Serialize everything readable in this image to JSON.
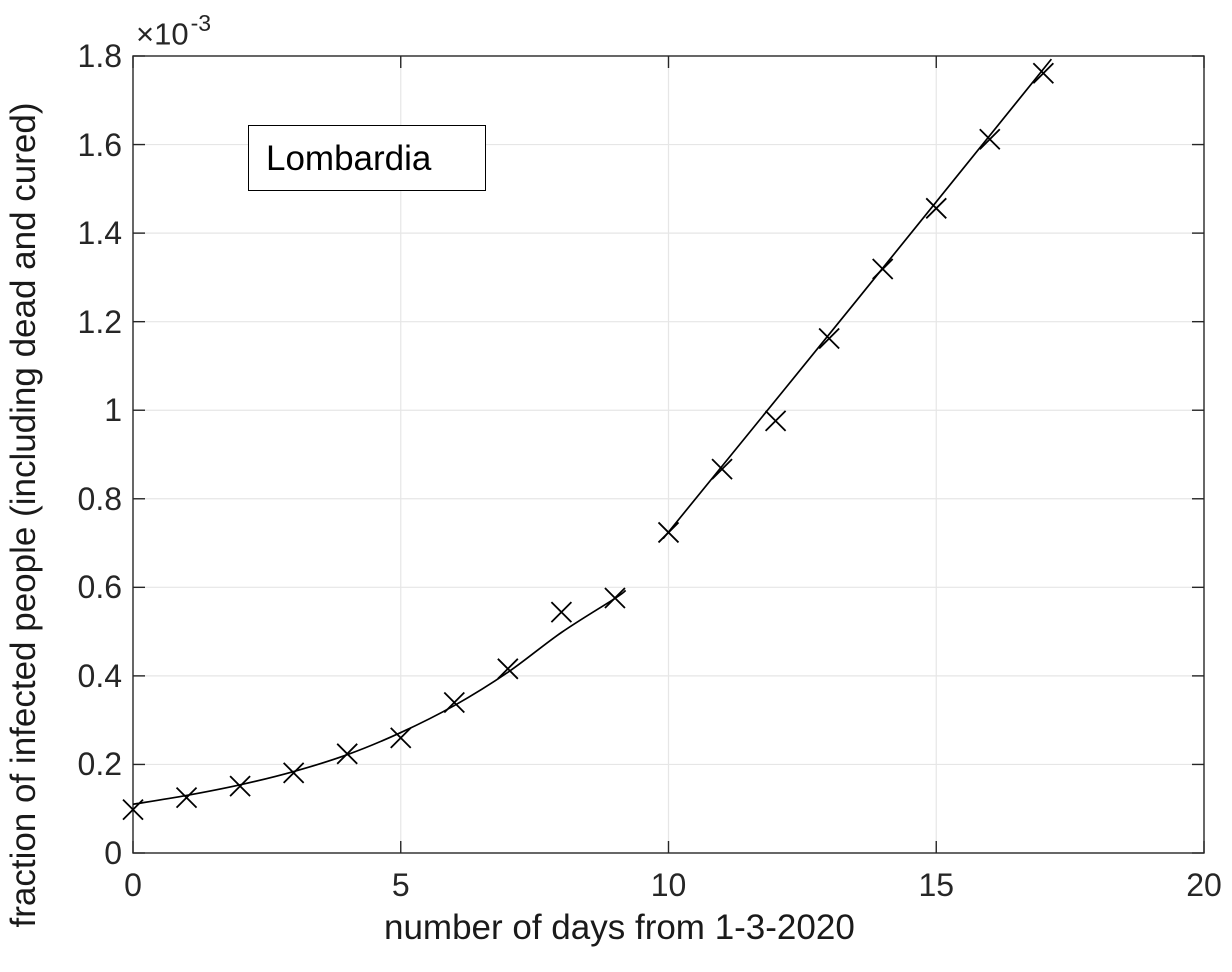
{
  "figure": {
    "y_exponent_base": "×10",
    "y_exponent_power": "-3"
  },
  "chart_data": {
    "type": "scatter",
    "annotation": "Lombardia",
    "xlabel": "number of days from 1-3-2020",
    "ylabel": "fraction of infected people (including dead and cured)",
    "y_scale_label": "×10^-3",
    "xlim": [
      0,
      20
    ],
    "ylim_in_1e-3": [
      0,
      1.8
    ],
    "x_ticks": [
      0,
      5,
      10,
      15,
      20
    ],
    "x_tick_labels": [
      "0",
      "5",
      "10",
      "15",
      "20"
    ],
    "y_ticks": [
      0,
      0.2,
      0.4,
      0.6,
      0.8,
      1.0,
      1.2,
      1.4,
      1.6,
      1.8
    ],
    "y_tick_labels": [
      "0",
      "0.2",
      "0.4",
      "0.6",
      "0.8",
      "1",
      "1.2",
      "1.4",
      "1.6",
      "1.8"
    ],
    "grid": true,
    "legend_position": "none",
    "marker": "x",
    "series": [
      {
        "name": "infected-fraction-data",
        "type": "scatter",
        "x": [
          0,
          1,
          2,
          3,
          4,
          5,
          6,
          7,
          8,
          9,
          10,
          11,
          12,
          13,
          14,
          15,
          16,
          17
        ],
        "y_in_1e-3": [
          0.098,
          0.125,
          0.151,
          0.181,
          0.224,
          0.26,
          0.34,
          0.416,
          0.544,
          0.576,
          0.724,
          0.867,
          0.976,
          1.162,
          1.319,
          1.456,
          1.612,
          1.761
        ]
      },
      {
        "name": "fit-curve-segment-1",
        "type": "line",
        "points_in_1e-3": [
          [
            0,
            0.11
          ],
          [
            1,
            0.13
          ],
          [
            2,
            0.154
          ],
          [
            3,
            0.184
          ],
          [
            4,
            0.222
          ],
          [
            5,
            0.272
          ],
          [
            6,
            0.333
          ],
          [
            7,
            0.408
          ],
          [
            8,
            0.498
          ],
          [
            9,
            0.575
          ],
          [
            9.2,
            0.593
          ]
        ]
      },
      {
        "name": "fit-curve-segment-2",
        "type": "line",
        "points_in_1e-3": [
          [
            9.9,
            0.71
          ],
          [
            13.5,
            1.246
          ],
          [
            17.15,
            1.793
          ]
        ]
      }
    ],
    "colors": {
      "marker": "#000000",
      "line": "#000000",
      "grid": "#e6e6e6",
      "axis": "#262626",
      "background": "#ffffff"
    }
  }
}
